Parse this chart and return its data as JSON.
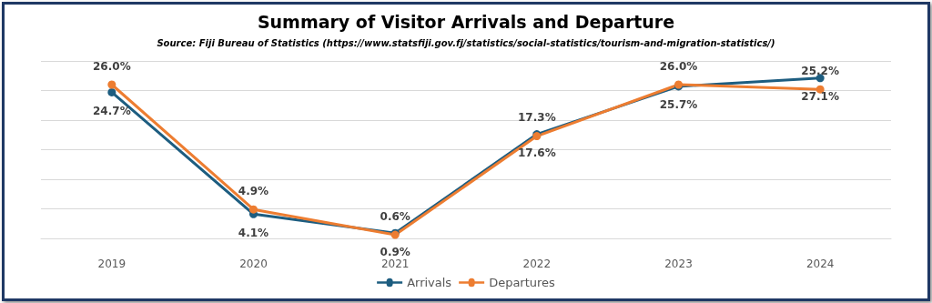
{
  "chart_data": {
    "type": "line",
    "title": "Summary of Visitor Arrivals and Departure",
    "annotations": [
      "Source: Fiji Bureau of Statistics (https://www.statsfiji.gov.fj/statistics/social-statistics/tourism-and-migration-statistics/)"
    ],
    "categories": [
      "2019",
      "2020",
      "2021",
      "2022",
      "2023",
      "2024"
    ],
    "series": [
      {
        "name": "Arrivals",
        "color": "#1d5d80",
        "values": [
          24.7,
          4.1,
          0.9,
          17.6,
          25.7,
          27.1
        ],
        "value_labels": [
          "24.7%",
          "4.1%",
          "0.9%",
          "17.6%",
          "25.7%",
          "27.1%"
        ]
      },
      {
        "name": "Departures",
        "color": "#ed7d31",
        "values": [
          26.0,
          4.9,
          0.6,
          17.3,
          26.0,
          25.2
        ],
        "value_labels": [
          "26.0%",
          "4.9%",
          "0.6%",
          "17.3%",
          "26.0%",
          "25.2%"
        ]
      }
    ],
    "tick_labels": "x",
    "marker": "circle",
    "line_style": "solid",
    "grid": "y",
    "legend": "bottom"
  }
}
